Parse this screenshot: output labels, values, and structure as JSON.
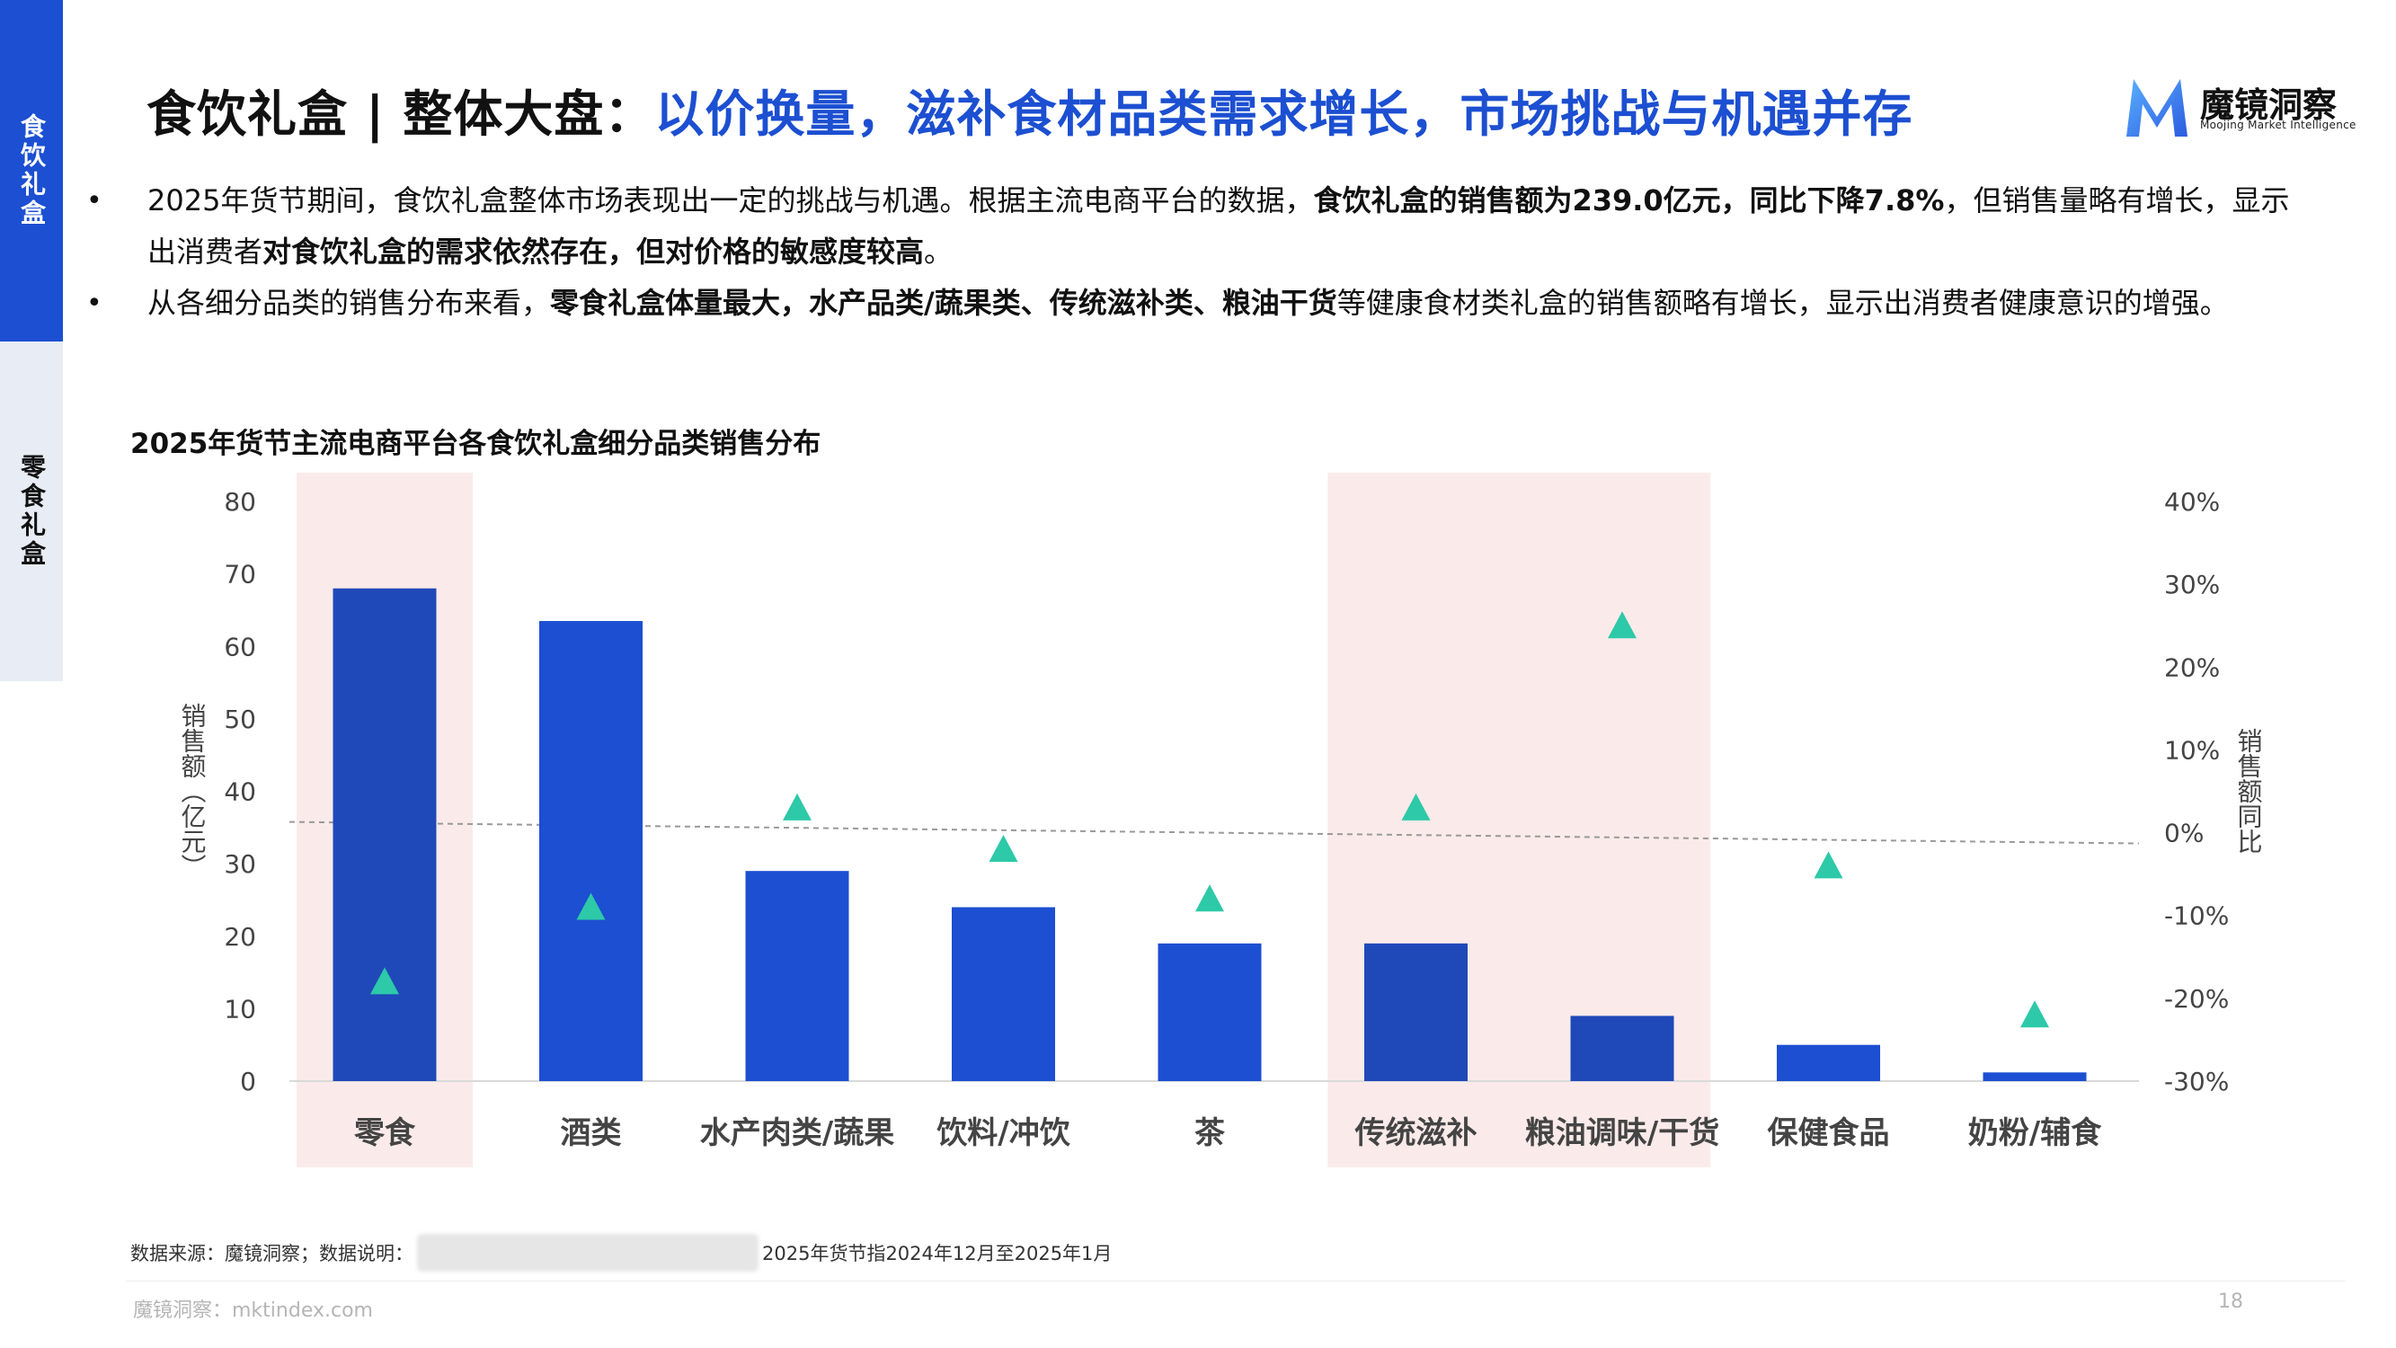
{
  "sidebar": {
    "tabs": [
      {
        "label": "食饮礼盒",
        "active": true
      },
      {
        "label": "零食礼盒",
        "active": false
      }
    ]
  },
  "header": {
    "title_prefix": "食饮礼盒 | 整体大盘：",
    "title_highlight": "以价换量，滋补食材品类需求增长，市场挑战与机遇并存"
  },
  "logo": {
    "name": "魔镜洞察",
    "tagline": "Moojing Market Intelligence"
  },
  "bullets": [
    {
      "t1": "2025年货节期间，食饮礼盒整体市场表现出一定的挑战与机遇。根据主流电商平台的数据，",
      "b1": "食饮礼盒的销售额为239.0亿元，同比下降7.8%",
      "t2": "，但销售量略有增长，显示出消费者",
      "b2": "对食饮礼盒的需求依然存在，但对价格的敏感度较高",
      "t3": "。"
    },
    {
      "t1": "从各细分品类的销售分布来看，",
      "b1": "零食礼盒体量最大，水产品类/蔬果类、传统滋补类、粮油干货",
      "t2": "等健康食材类礼盒的销售额略有增长，显示出消费者健康意识的增强。"
    }
  ],
  "chart_data": {
    "type": "bar",
    "title": "2025年货节主流电商平台各食饮礼盒细分品类销售分布",
    "categories": [
      "零食",
      "酒类",
      "水产肉类/蔬果",
      "饮料/冲饮",
      "茶",
      "传统滋补",
      "粮油调味/干货",
      "保健食品",
      "奶粉/辅食"
    ],
    "highlighted_categories": [
      "零食",
      "传统滋补",
      "粮油调味/干货"
    ],
    "series": [
      {
        "name": "销售额（亿元）",
        "type": "bar",
        "axis": "left",
        "values": [
          68,
          63.5,
          29,
          24,
          19,
          19,
          9,
          5,
          1.2
        ]
      },
      {
        "name": "销售额同比",
        "type": "scatter",
        "marker": "triangle",
        "axis": "right",
        "values": [
          -18,
          -9,
          3,
          -2,
          -8,
          3,
          25,
          -4,
          -22
        ]
      }
    ],
    "left_axis": {
      "label": "销售额（亿元）",
      "ylim": [
        0,
        80
      ],
      "ticks": [
        "0",
        "10",
        "20",
        "30",
        "40",
        "50",
        "60",
        "70",
        "80"
      ]
    },
    "right_axis": {
      "label": "销售额同比",
      "ylim": [
        -30,
        40
      ],
      "ticks": [
        "-30%",
        "-20%",
        "-10%",
        "0%",
        "10%",
        "20%",
        "30%",
        "40%"
      ]
    },
    "colors": {
      "bar": "#1c4fd1",
      "bar_highlight": "#1f49b8",
      "marker": "#2dc9a8",
      "highlight_bg": "#fbeaea",
      "zero_line": "#999999"
    }
  },
  "footer": {
    "source_prefix": "数据来源：魔镜洞察；数据说明：",
    "source_suffix": "2025年货节指2024年12月至2025年1月",
    "site": "魔镜洞察：mktindex.com",
    "page": "18"
  }
}
